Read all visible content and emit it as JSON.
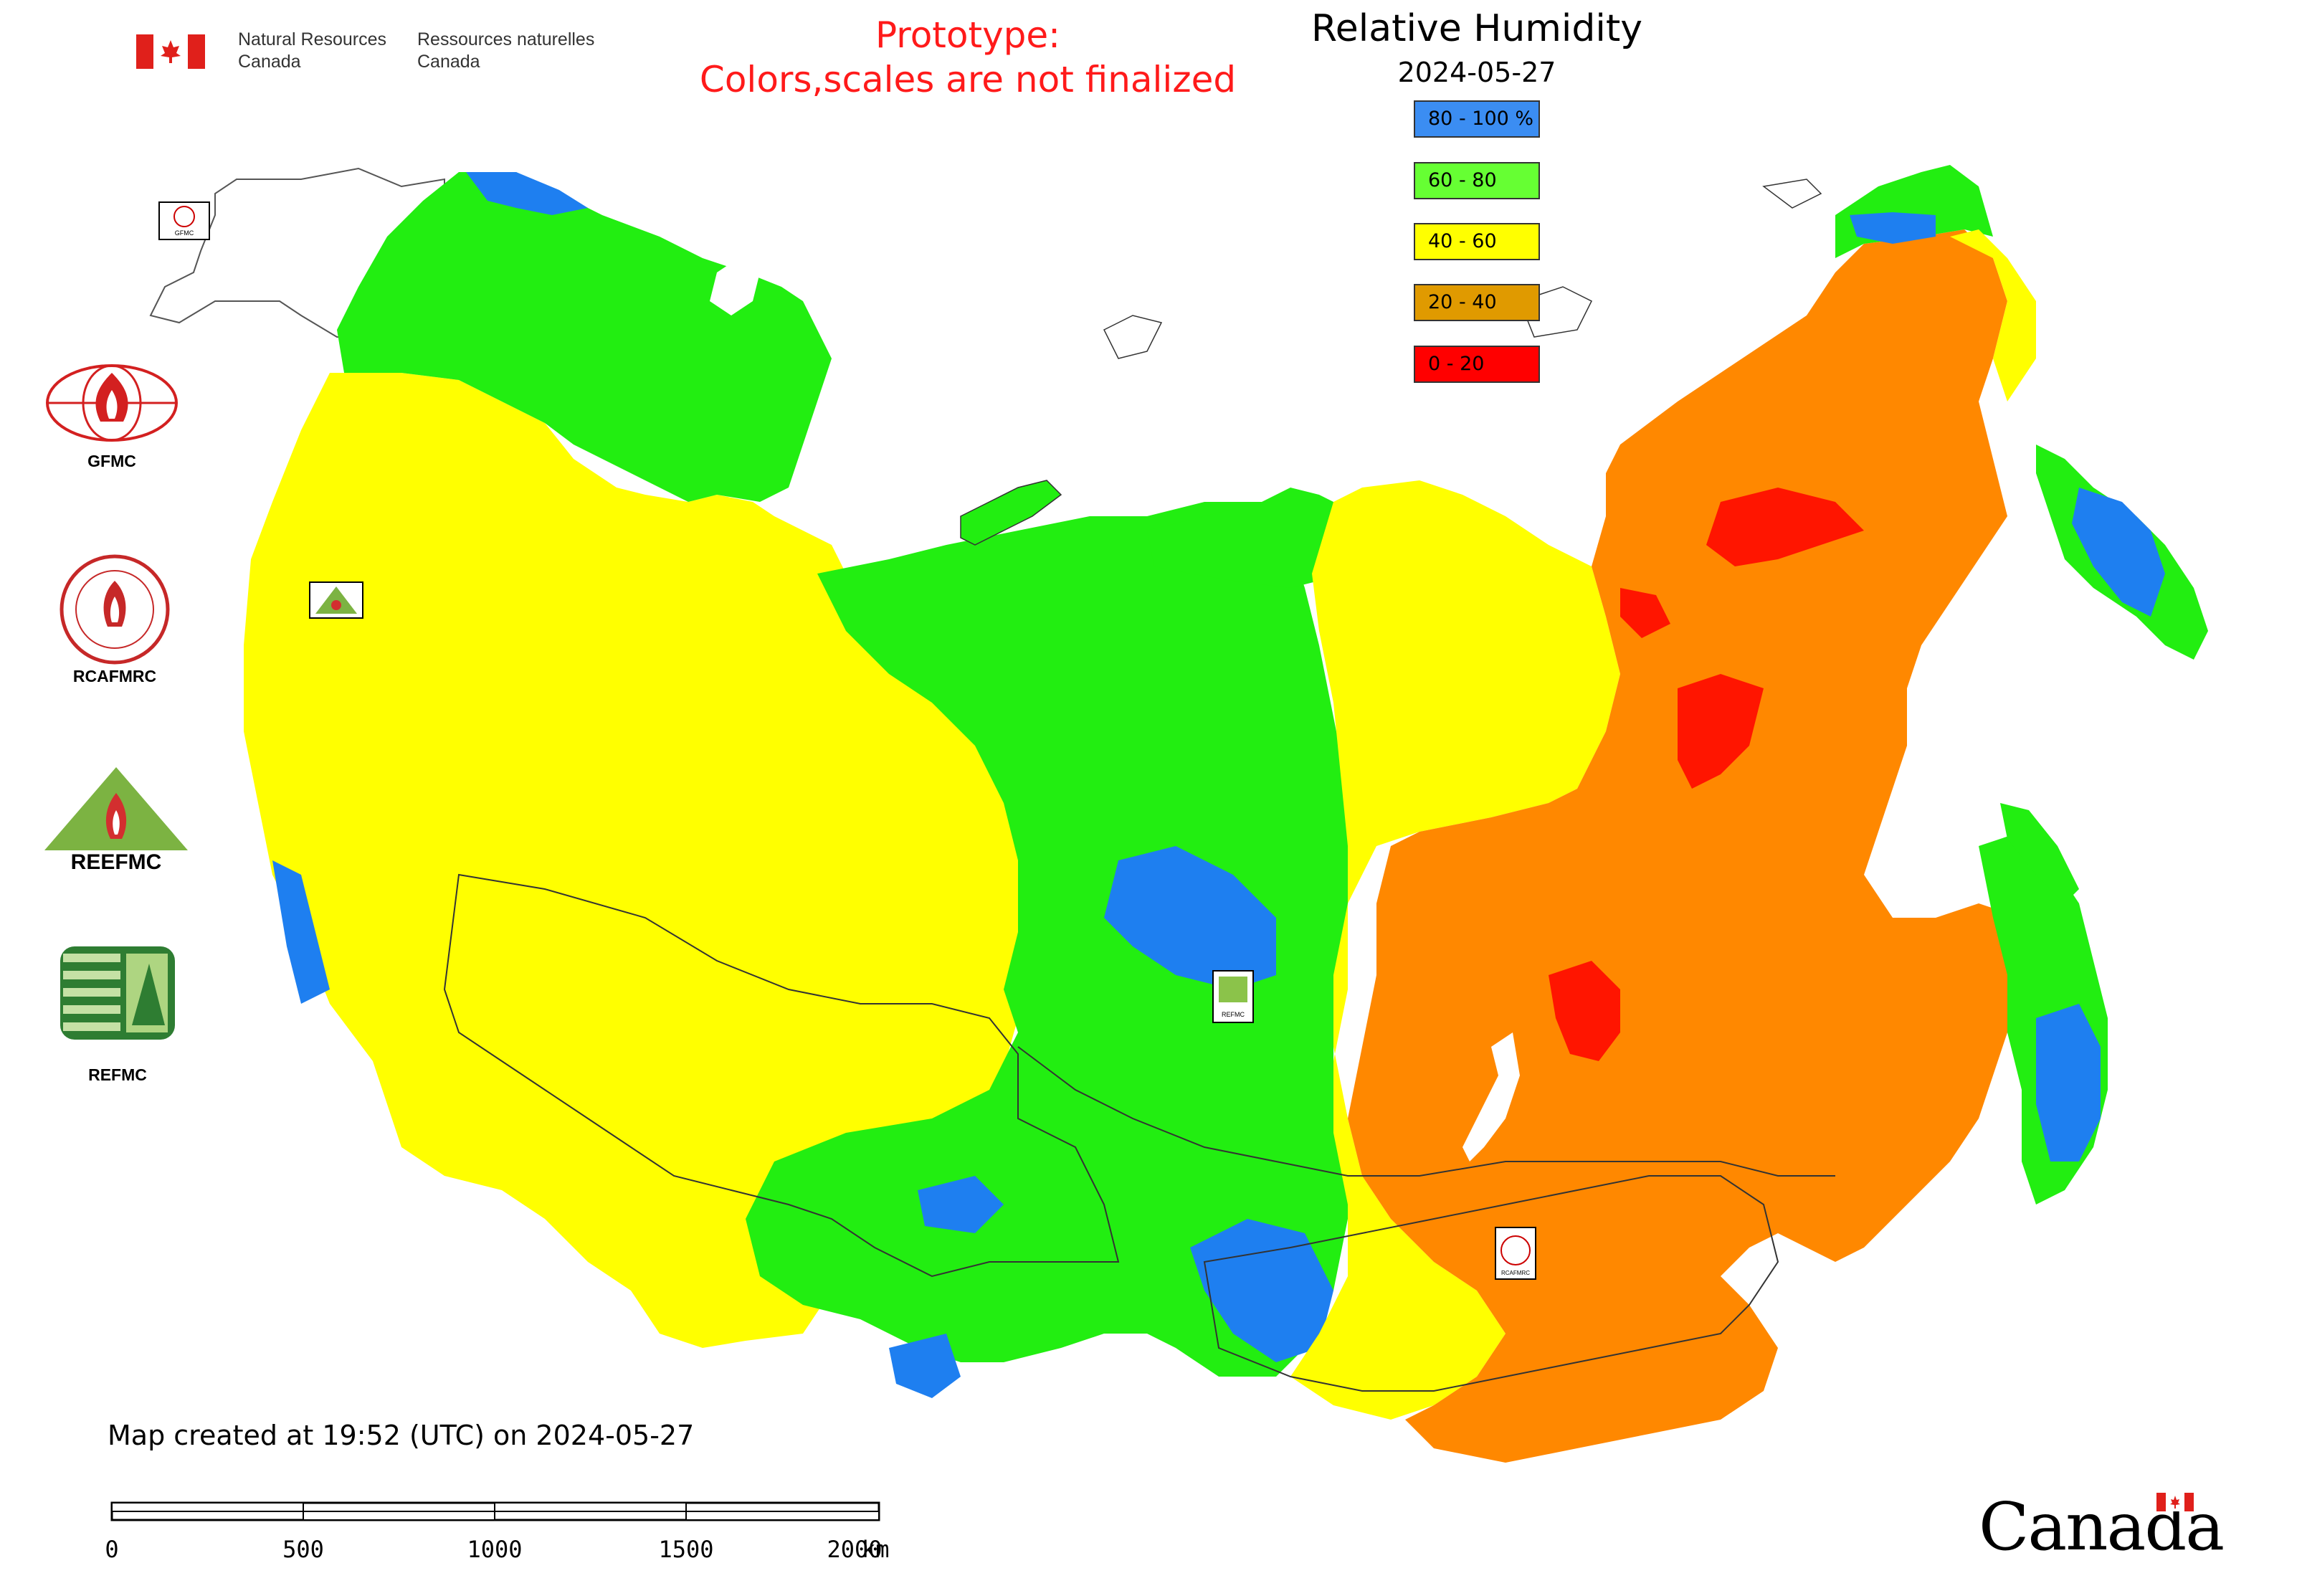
{
  "header": {
    "nrcan_en_line1": "Natural Resources",
    "nrcan_en_line2": "Canada",
    "nrcan_fr_line1": "Ressources naturelles",
    "nrcan_fr_line2": "Canada",
    "prototype_line1": "Prototype:",
    "prototype_line2": "Colors,scales are not finalized"
  },
  "legend": {
    "title": "Relative Humidity",
    "date": "2024-05-27",
    "classes": [
      {
        "label": "80 - 100 %",
        "color": "#3b8df2"
      },
      {
        "label": "60 - 80",
        "color": "#66ff33"
      },
      {
        "label": "40 - 60",
        "color": "#ffff00"
      },
      {
        "label": "20 - 40",
        "color": "#e09a00"
      },
      {
        "label": "0 - 20",
        "color": "#ff0000"
      }
    ]
  },
  "map_colors": {
    "humid": "#1e7ff0",
    "moist": "#22ee11",
    "moderate": "#ffff00",
    "dry": "#ff8800",
    "very_dry": "#ff1500",
    "water": "#ffffff",
    "border": "#222222"
  },
  "agencies": [
    {
      "label": "GFMC",
      "icon": "gfmc-flame-globe-icon"
    },
    {
      "label": "RCAFMRC",
      "icon": "rcafmrc-seal-icon"
    },
    {
      "label": "REEFMC",
      "icon": "reefmc-triangle-icon"
    },
    {
      "label": "REFMC",
      "icon": "refmc-sigma-icon"
    }
  ],
  "map_markers": {
    "gfmc": "GFMC",
    "reefmc": "REEFMC",
    "refmc": "REFMC",
    "rcafmrc": "RCAFMRC"
  },
  "footer": {
    "created": "Map created at 19:52 (UTC) on 2024-05-27",
    "scale_labels": [
      "0",
      "500",
      "1000",
      "1500",
      "2000"
    ],
    "scale_unit": "km",
    "wordmark": "Canada"
  }
}
